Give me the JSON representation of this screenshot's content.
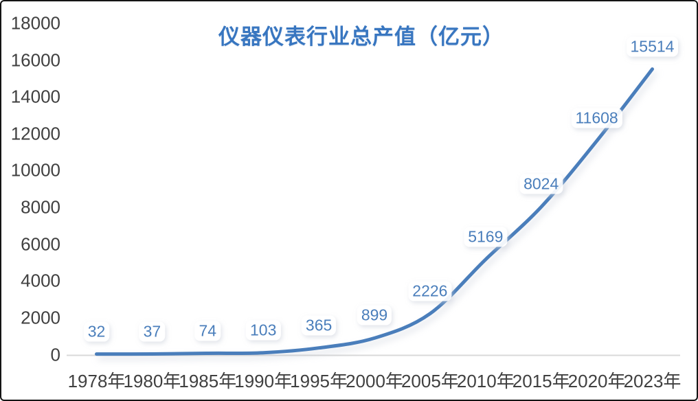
{
  "chart_data": {
    "type": "line",
    "title": "仪器仪表行业总产值（亿元）",
    "categories": [
      "1978年",
      "1980年",
      "1985年",
      "1990年",
      "1995年",
      "2000年",
      "2005年",
      "2010年",
      "2015年",
      "2020年",
      "2023年"
    ],
    "values": [
      32,
      37,
      74,
      103,
      365,
      899,
      2226,
      5169,
      8024,
      11608,
      15514
    ],
    "data_labels": [
      "32",
      "37",
      "74",
      "103",
      "365",
      "899",
      "2226",
      "5169",
      "8024",
      "11608",
      "15514"
    ],
    "y_ticks": [
      "18000",
      "16000",
      "14000",
      "12000",
      "10000",
      "8000",
      "6000",
      "4000",
      "2000",
      "0"
    ],
    "y_tick_values": [
      18000,
      16000,
      14000,
      12000,
      10000,
      8000,
      6000,
      4000,
      2000,
      0
    ],
    "ylim": [
      0,
      18000
    ],
    "xlabel": "",
    "ylabel": "",
    "grid": false,
    "smooth": true,
    "legend": "none",
    "line_color": "#4a7ebb",
    "label_color": "#4a7ebb",
    "title_color": "#3876c0",
    "axis_text_color": "#404040",
    "axis_line_color": "#d9d9d9",
    "background_color": "#ffffff",
    "frame_border_color": "#141414"
  }
}
